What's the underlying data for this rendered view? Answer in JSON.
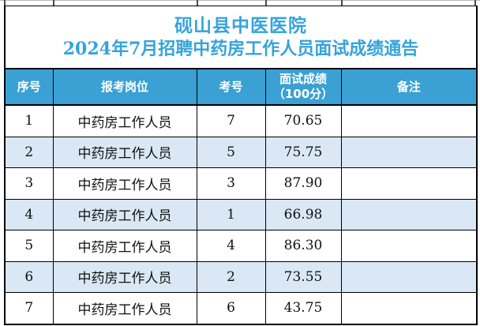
{
  "title": {
    "line1": "砚山县中医医院",
    "line2": "2024年7月招聘中药房工作人员面试成绩通告"
  },
  "table": {
    "headers": [
      "序号",
      "报考岗位",
      "考号",
      "面试成绩\n（100分）",
      "备注"
    ],
    "rows": [
      {
        "no": "1",
        "position": "中药房工作人员",
        "exam_no": "7",
        "score": "70.65",
        "remark": ""
      },
      {
        "no": "2",
        "position": "中药房工作人员",
        "exam_no": "5",
        "score": "75.75",
        "remark": ""
      },
      {
        "no": "3",
        "position": "中药房工作人员",
        "exam_no": "3",
        "score": "87.90",
        "remark": ""
      },
      {
        "no": "4",
        "position": "中药房工作人员",
        "exam_no": "1",
        "score": "66.98",
        "remark": ""
      },
      {
        "no": "5",
        "position": "中药房工作人员",
        "exam_no": "4",
        "score": "86.30",
        "remark": ""
      },
      {
        "no": "6",
        "position": "中药房工作人员",
        "exam_no": "2",
        "score": "73.55",
        "remark": ""
      },
      {
        "no": "7",
        "position": "中药房工作人员",
        "exam_no": "6",
        "score": "43.75",
        "remark": ""
      }
    ]
  },
  "colors": {
    "title_text": "#35a3db",
    "header_bg": "#3ba0d3",
    "header_text": "#ffffff",
    "stripe_bg": "#d9e8f4",
    "body_text": "#111111",
    "border": "#000000"
  }
}
